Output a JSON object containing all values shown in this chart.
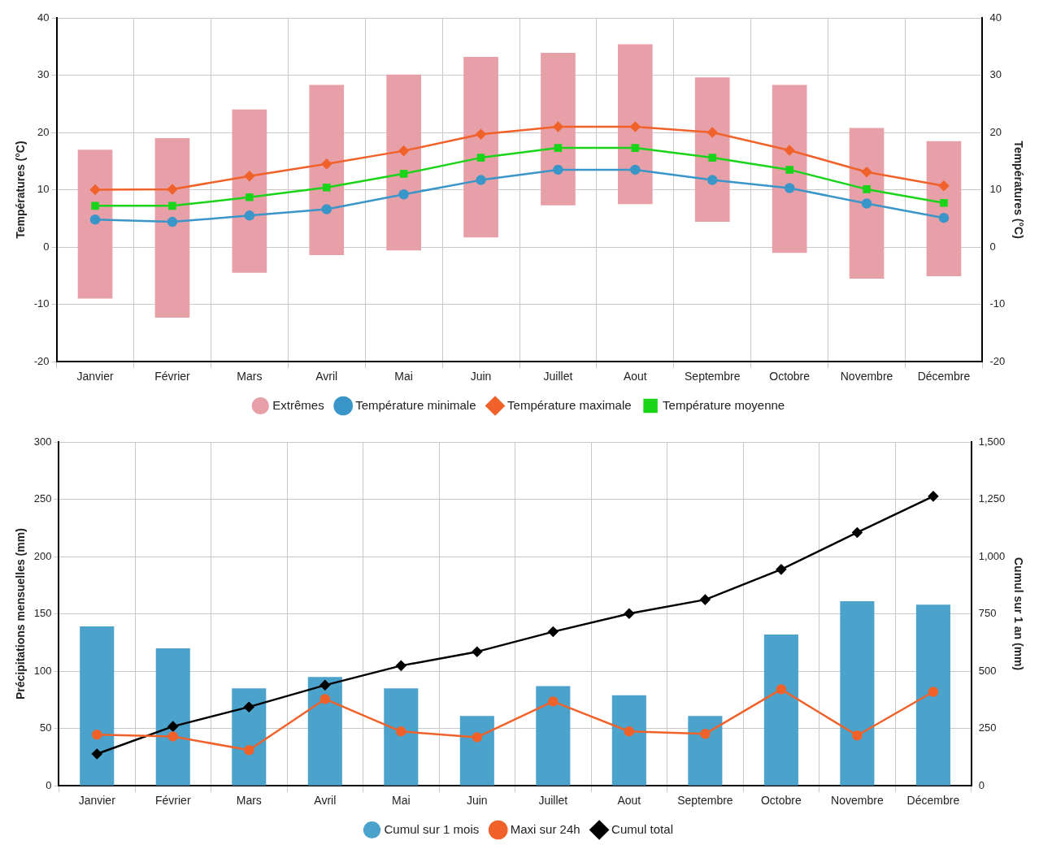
{
  "chart_data": [
    {
      "type": "bar",
      "ylabel": "Températures (°C)",
      "y2label": "Températures (°C)",
      "categories": [
        "Janvier",
        "Février",
        "Mars",
        "Avril",
        "Mai",
        "Juin",
        "Juillet",
        "Aout",
        "Septembre",
        "Octobre",
        "Novembre",
        "Décembre"
      ],
      "series": [
        {
          "name": "Extrêmes",
          "color": "#e8a0a8",
          "base": [
            -9,
            -12.3,
            -4.5,
            -1.4,
            -0.6,
            1.7,
            7.3,
            7.5,
            4.4,
            -1,
            -5.5,
            -5.1
          ],
          "values": [
            26,
            31.3,
            28.5,
            29.7,
            30.7,
            31.5,
            26.6,
            27.9,
            25.2,
            29.3,
            26.3,
            23.6
          ]
        },
        {
          "name": "Température minimale",
          "type": "line",
          "color": "#3a96c8",
          "marker": "circle",
          "values": [
            4.8,
            4.4,
            5.5,
            6.6,
            9.2,
            11.7,
            13.5,
            13.5,
            11.7,
            10.3,
            7.6,
            5.1
          ]
        },
        {
          "name": "Température maximale",
          "type": "line",
          "color": "#f0622a",
          "marker": "diamond",
          "values": [
            10,
            10.1,
            12.4,
            14.5,
            16.8,
            19.7,
            21,
            21,
            20,
            16.9,
            13.1,
            10.7
          ]
        },
        {
          "name": "Température moyenne",
          "type": "line",
          "color": "#19d419",
          "marker": "square",
          "values": [
            7.2,
            7.2,
            8.7,
            10.4,
            12.8,
            15.6,
            17.3,
            17.3,
            15.6,
            13.5,
            10.1,
            7.7
          ]
        }
      ],
      "ylim": [
        -20,
        40
      ],
      "yticks": [
        -20,
        -10,
        0,
        10,
        20,
        30,
        40
      ],
      "y2lim": [
        -20,
        40
      ],
      "y2ticks": [
        -20,
        -10,
        0,
        10,
        20,
        30,
        40
      ],
      "grid": true,
      "legend": "bottom"
    },
    {
      "type": "bar",
      "ylabel": "Précipitations mensuelles (mm)",
      "y2label": "Cumul sur 1 an (mm)",
      "categories": [
        "Janvier",
        "Février",
        "Mars",
        "Avril",
        "Mai",
        "Juin",
        "Juillet",
        "Aout",
        "Septembre",
        "Octobre",
        "Novembre",
        "Décembre"
      ],
      "series": [
        {
          "name": "Cumul sur 1 mois",
          "color": "#4ba3cc",
          "values": [
            139,
            120,
            85,
            95,
            85,
            61,
            87,
            79,
            61,
            132,
            161,
            158
          ]
        },
        {
          "name": "Maxi sur 24h",
          "type": "line",
          "color": "#f0622a",
          "marker": "circle",
          "values": [
            44.6,
            43.1,
            31.1,
            75.7,
            47.4,
            42.4,
            73.6,
            47.4,
            45.3,
            84.2,
            43.9,
            82
          ]
        },
        {
          "name": "Cumul total",
          "type": "line",
          "axis": "y2",
          "color": "#000000",
          "marker": "diamond",
          "values": [
            139,
            259,
            344,
            439,
            524,
            585,
            672,
            751,
            812,
            944,
            1105,
            1263
          ]
        }
      ],
      "ylim": [
        0,
        300
      ],
      "yticks": [
        0,
        50,
        100,
        150,
        200,
        250,
        300
      ],
      "y2lim": [
        0,
        1500
      ],
      "y2ticks": [
        0,
        250,
        500,
        750,
        {
          "value": 1000,
          "label": "1,000"
        },
        {
          "value": 1250,
          "label": "1,250"
        },
        {
          "value": 1500,
          "label": "1,500"
        }
      ],
      "grid": true,
      "legend": "bottom"
    }
  ]
}
